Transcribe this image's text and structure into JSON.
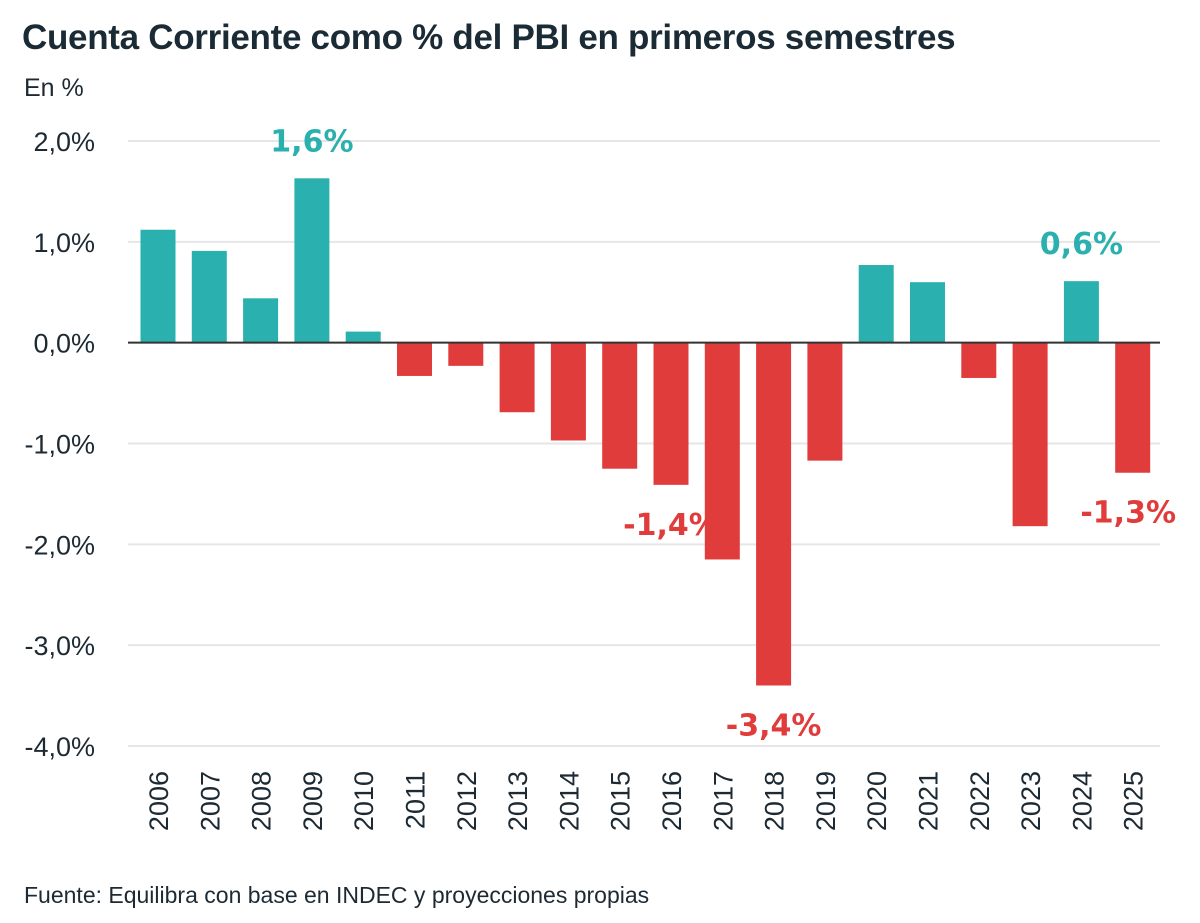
{
  "header": {
    "title": "Cuenta Corriente como % del PBI en primeros semestres",
    "subtitle": "En %"
  },
  "footer": {
    "source": "Fuente: Equilibra con base en INDEC y proyecciones propias"
  },
  "colors": {
    "positive": "#2ab0ae",
    "negative": "#e03c3c",
    "grid": "#e6e6e6",
    "zero_line": "#333333",
    "text": "#1d2a33"
  },
  "chart_data": {
    "type": "bar",
    "title": "Cuenta Corriente como % del PBI en primeros semestres",
    "ylabel": "En %",
    "xlabel": "",
    "ylim": [
      -4,
      2
    ],
    "yticks": [
      2,
      1,
      0,
      -1,
      -2,
      -3,
      -4
    ],
    "ytick_labels": [
      "2,0%",
      "1,0%",
      "0,0%",
      "-1,0%",
      "-2,0%",
      "-3,0%",
      "-4,0%"
    ],
    "grid": true,
    "categories": [
      "2006",
      "2007",
      "2008",
      "2009",
      "2010",
      "2011",
      "2012",
      "2013",
      "2014",
      "2015",
      "2016",
      "2017",
      "2018",
      "2019",
      "2020",
      "2021",
      "2022",
      "2023",
      "2024",
      "2025"
    ],
    "values": [
      1.12,
      0.91,
      0.44,
      1.63,
      0.11,
      -0.33,
      -0.23,
      -0.69,
      -0.97,
      -1.25,
      -1.41,
      -2.15,
      -3.4,
      -1.17,
      0.77,
      0.6,
      -0.35,
      -1.82,
      0.61,
      -1.29
    ],
    "annotations": [
      {
        "category": "2009",
        "text": "1,6%",
        "sign": "positive"
      },
      {
        "category": "2016",
        "text": "-1,4%",
        "sign": "negative"
      },
      {
        "category": "2018",
        "text": "-3,4%",
        "sign": "negative"
      },
      {
        "category": "2024",
        "text": "0,6%",
        "sign": "positive"
      },
      {
        "category": "2025",
        "text": "-1,3%",
        "sign": "negative"
      }
    ]
  }
}
